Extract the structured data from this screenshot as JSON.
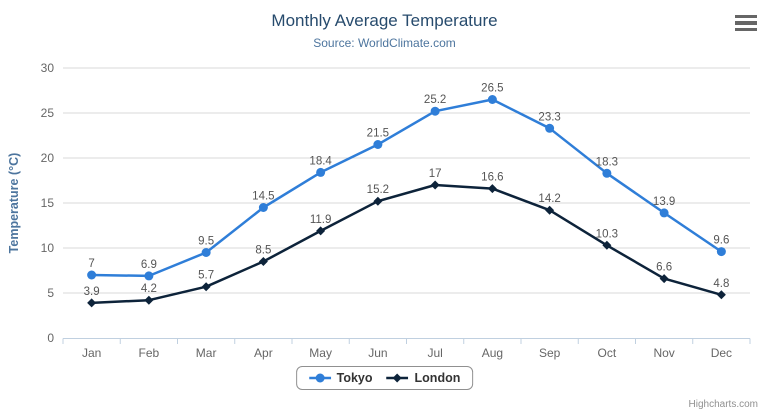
{
  "chart_data": {
    "type": "line",
    "title": "Monthly Average Temperature",
    "subtitle": "Source: WorldClimate.com",
    "categories": [
      "Jan",
      "Feb",
      "Mar",
      "Apr",
      "May",
      "Jun",
      "Jul",
      "Aug",
      "Sep",
      "Oct",
      "Nov",
      "Dec"
    ],
    "series": [
      {
        "name": "Tokyo",
        "color": "#2f7ed8",
        "marker": "circle",
        "values": [
          7,
          6.9,
          9.5,
          14.5,
          18.4,
          21.5,
          25.2,
          26.5,
          23.3,
          18.3,
          13.9,
          9.6
        ]
      },
      {
        "name": "London",
        "color": "#0d233a",
        "marker": "diamond",
        "values": [
          3.9,
          4.2,
          5.7,
          8.5,
          11.9,
          15.2,
          17,
          16.6,
          14.2,
          10.3,
          6.6,
          4.8
        ]
      }
    ],
    "xlabel": "",
    "ylabel": "Temperature (°C)",
    "ylim": [
      0,
      30
    ],
    "yticks": [
      0,
      5,
      10,
      15,
      20,
      25,
      30
    ],
    "grid": true,
    "data_labels": true,
    "legend_position": "bottom"
  },
  "colors": {
    "title": "#274b6d",
    "subtitle": "#4d759e",
    "axis_title": "#4d759e",
    "tick_label": "#666666",
    "data_label": "#555555",
    "grid_line": "#d8d8d8",
    "axis_line": "#c0d0e0",
    "legend_border": "#909090",
    "legend_text": "#333333",
    "credits_text": "#909090",
    "menu_icon": "#666666"
  },
  "credits": {
    "label": "Highcharts.com"
  },
  "menu": {
    "tooltip": "Chart context menu"
  }
}
